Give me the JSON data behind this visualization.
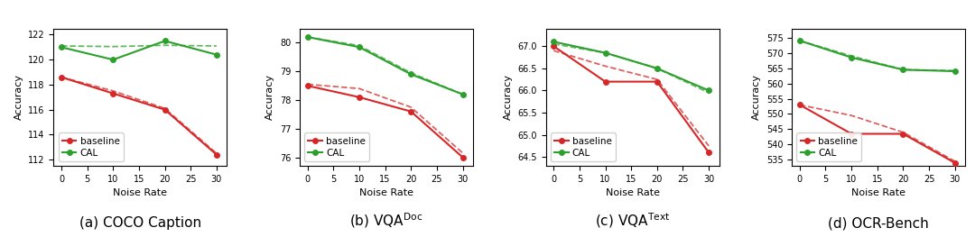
{
  "x": [
    0,
    10,
    20,
    30
  ],
  "plots": [
    {
      "title": "(a) COCO Caption",
      "ylabel": "Accuracy",
      "xlabel": "Noise Rate",
      "ylim": [
        111.5,
        122.5
      ],
      "yticks": [
        112,
        114,
        116,
        118,
        120,
        122
      ],
      "baseline_solid": [
        118.6,
        117.3,
        116.0,
        112.4
      ],
      "baseline_dashed": [
        118.6,
        117.5,
        116.1,
        112.5
      ],
      "cal_solid": [
        121.0,
        120.0,
        121.5,
        120.4
      ],
      "cal_dashed": [
        121.1,
        121.05,
        121.15,
        121.1
      ]
    },
    {
      "title": "(b) VQA$^{\\mathrm{Doc}}$",
      "ylabel": "Accuracy",
      "xlabel": "Noise Rate",
      "ylim": [
        75.7,
        80.5
      ],
      "yticks": [
        76,
        77,
        78,
        79,
        80
      ],
      "baseline_solid": [
        78.5,
        78.1,
        77.6,
        76.0
      ],
      "baseline_dashed": [
        78.55,
        78.4,
        77.75,
        76.15
      ],
      "cal_solid": [
        80.2,
        79.85,
        78.9,
        78.2
      ],
      "cal_dashed": [
        80.2,
        79.9,
        78.95,
        78.2
      ]
    },
    {
      "title": "(c) VQA$^{\\mathrm{Text}}$",
      "ylabel": "Accuracy",
      "xlabel": "Noise Rate",
      "ylim": [
        64.3,
        67.4
      ],
      "yticks": [
        64.5,
        65.0,
        65.5,
        66.0,
        66.5,
        67.0
      ],
      "baseline_solid": [
        67.0,
        66.2,
        66.2,
        64.6
      ],
      "baseline_dashed": [
        66.9,
        66.55,
        66.25,
        64.75
      ],
      "cal_solid": [
        67.1,
        66.85,
        66.5,
        66.0
      ],
      "cal_dashed": [
        67.05,
        66.85,
        66.5,
        65.95
      ]
    },
    {
      "title": "(d) OCR-Bench",
      "ylabel": "Accuracy",
      "xlabel": "Noise Rate",
      "ylim": [
        533,
        578
      ],
      "yticks": [
        535,
        540,
        545,
        550,
        555,
        560,
        565,
        570,
        575
      ],
      "baseline_solid": [
        553.0,
        543.5,
        543.5,
        534.0
      ],
      "baseline_dashed": [
        553.0,
        549.5,
        544.0,
        534.5
      ],
      "cal_solid": [
        574.0,
        568.5,
        564.5,
        564.0
      ],
      "cal_dashed": [
        574.0,
        569.0,
        564.5,
        564.2
      ]
    }
  ],
  "red_color": "#d62728",
  "green_color": "#2ca02c",
  "marker_size": 4,
  "linewidth": 1.5,
  "legend_fontsize": 7.5,
  "tick_fontsize": 7,
  "label_fontsize": 8,
  "title_fontsize": 11
}
